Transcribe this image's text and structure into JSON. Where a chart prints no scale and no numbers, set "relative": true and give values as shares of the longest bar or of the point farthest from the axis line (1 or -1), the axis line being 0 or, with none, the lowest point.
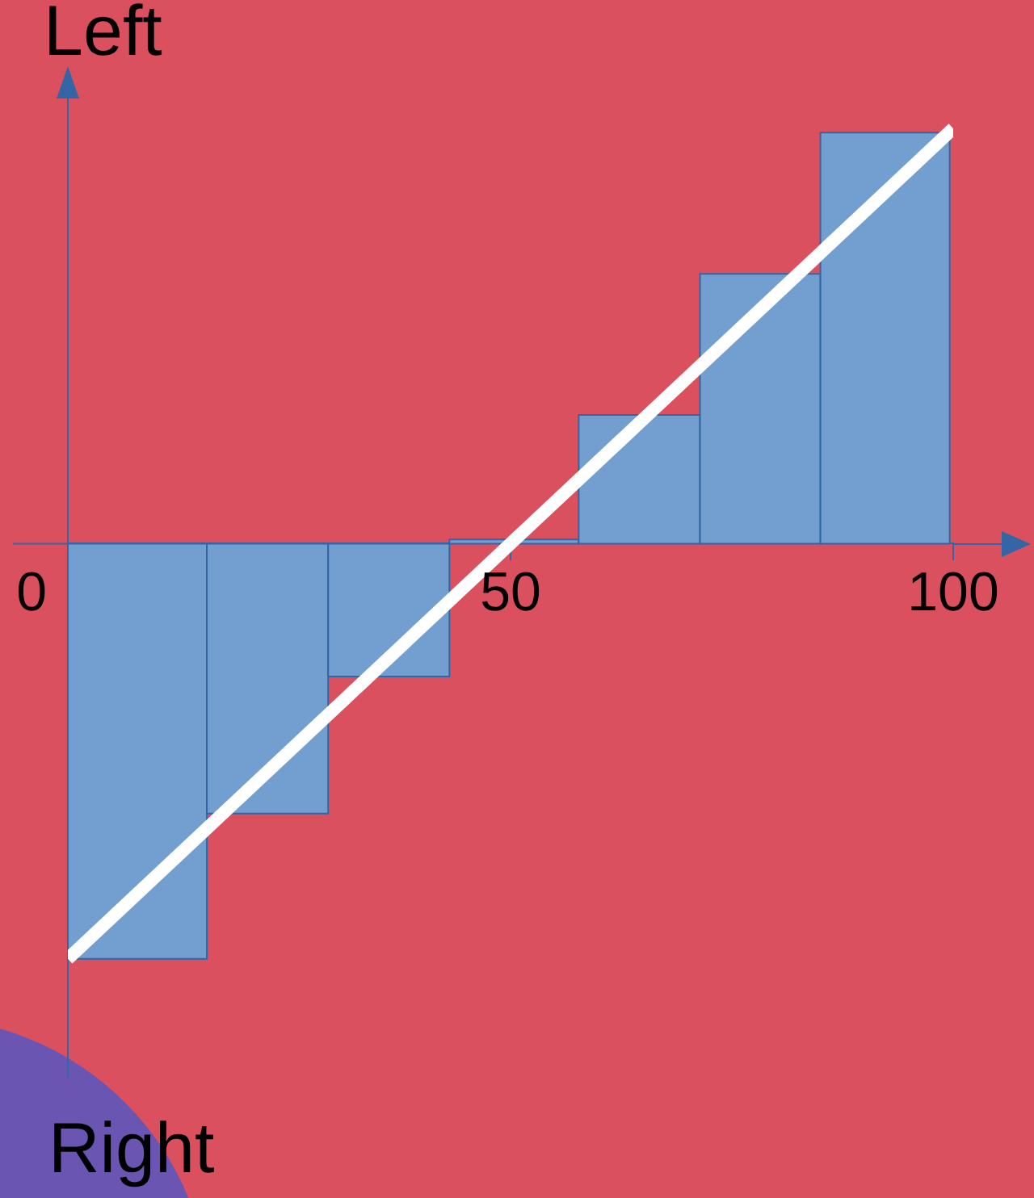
{
  "chart_data": {
    "type": "histogram",
    "ylabel": "Left",
    "annotations": [
      "Right"
    ],
    "bins": [
      0,
      15.7,
      29.4,
      43.1,
      57.7,
      71.4,
      85,
      99.6
    ],
    "values": [
      -1,
      -0.65,
      -0.32,
      0.01,
      0.31,
      0.65,
      0.99
    ],
    "color": "#729fcf",
    "relative": true,
    "xlim": [
      0,
      100
    ],
    "xticks": [
      0,
      50,
      100
    ],
    "series": [
      {
        "type": "line",
        "x": [
          0,
          100
        ],
        "values": [
          -1,
          1
        ],
        "color": "#ffffff"
      }
    ]
  }
}
